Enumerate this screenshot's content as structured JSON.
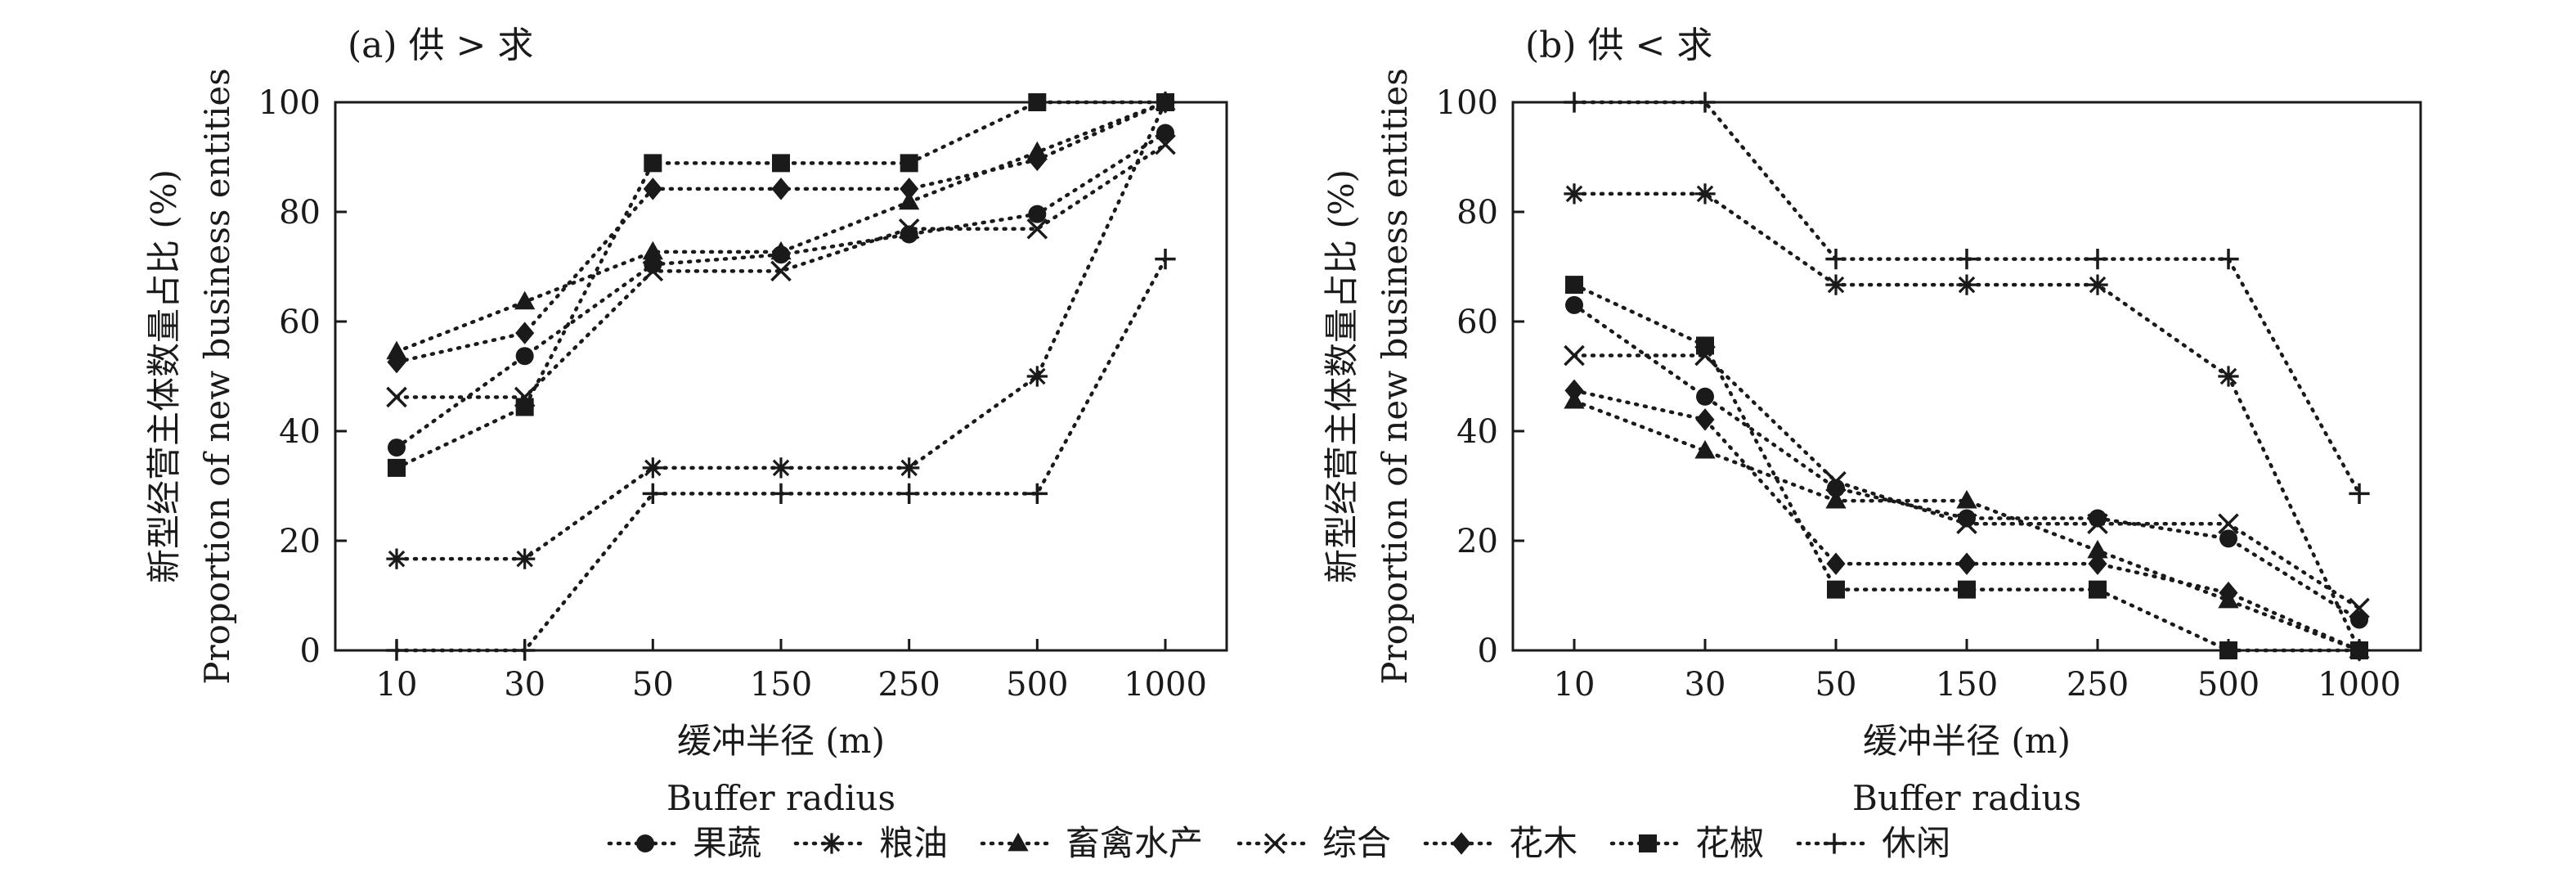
{
  "chart_data": [
    {
      "type": "line",
      "title": "(a) 供 > 求",
      "xlabel": "缓冲半径 (m)",
      "xlabel_en": "Buffer radius",
      "ylabel": "新型经营主体数量占比 (%)",
      "ylabel_en": "Proportion of new business entities",
      "categories": [
        "10",
        "30",
        "50",
        "150",
        "250",
        "500",
        "1000"
      ],
      "ylim": [
        0,
        100
      ],
      "yticks": [
        "0",
        "20",
        "40",
        "60",
        "80",
        "100"
      ],
      "grid": false,
      "series": [
        {
          "name": "果蔬",
          "marker": "circle",
          "values": [
            37,
            53.7,
            70.4,
            72.2,
            75.9,
            79.6,
            94.4
          ]
        },
        {
          "name": "粮油",
          "marker": "star",
          "values": [
            16.7,
            16.7,
            33.3,
            33.3,
            33.3,
            50,
            100
          ]
        },
        {
          "name": "畜禽水产",
          "marker": "triangle",
          "values": [
            54.5,
            63.6,
            72.7,
            72.7,
            81.8,
            90.9,
            100
          ]
        },
        {
          "name": "综合",
          "marker": "x",
          "values": [
            46.2,
            46.2,
            69.2,
            69.2,
            76.9,
            76.9,
            92.3
          ]
        },
        {
          "name": "花木",
          "marker": "diamond",
          "values": [
            52.6,
            57.9,
            84.2,
            84.2,
            84.2,
            89.5,
            100
          ]
        },
        {
          "name": "花椒",
          "marker": "square",
          "values": [
            33.3,
            44.4,
            88.9,
            88.9,
            88.9,
            100,
            100
          ]
        },
        {
          "name": "休闲",
          "marker": "plus",
          "values": [
            0,
            0,
            28.6,
            28.6,
            28.6,
            28.6,
            71.4
          ]
        }
      ]
    },
    {
      "type": "line",
      "title": "(b) 供 < 求",
      "xlabel": "缓冲半径 (m)",
      "xlabel_en": "Buffer radius",
      "ylabel": "新型经营主体数量占比 (%)",
      "ylabel_en": "Proportion of new business entities",
      "categories": [
        "10",
        "30",
        "50",
        "150",
        "250",
        "500",
        "1000"
      ],
      "ylim": [
        0,
        100
      ],
      "yticks": [
        "0",
        "20",
        "40",
        "60",
        "80",
        "100"
      ],
      "grid": false,
      "series": [
        {
          "name": "果蔬",
          "marker": "circle",
          "values": [
            63,
            46.3,
            29.6,
            24.1,
            24.1,
            20.4,
            5.6
          ]
        },
        {
          "name": "粮油",
          "marker": "star",
          "values": [
            83.3,
            83.3,
            66.7,
            66.7,
            66.7,
            50,
            0
          ]
        },
        {
          "name": "畜禽水产",
          "marker": "triangle",
          "values": [
            45.5,
            36.4,
            27.3,
            27.3,
            18.2,
            9.1,
            0
          ]
        },
        {
          "name": "综合",
          "marker": "x",
          "values": [
            53.8,
            53.8,
            30.8,
            23.1,
            23.1,
            23.1,
            7.7
          ]
        },
        {
          "name": "花木",
          "marker": "diamond",
          "values": [
            47.4,
            42.1,
            15.8,
            15.8,
            15.8,
            10.5,
            0
          ]
        },
        {
          "name": "花椒",
          "marker": "square",
          "values": [
            66.7,
            55.6,
            11.1,
            11.1,
            11.1,
            0,
            0
          ]
        },
        {
          "name": "休闲",
          "marker": "plus",
          "values": [
            100,
            100,
            71.4,
            71.4,
            71.4,
            71.4,
            28.6
          ]
        }
      ]
    }
  ],
  "legend": {
    "placement": "bottom",
    "items": [
      "果蔬",
      "粮油",
      "畜禽水产",
      "综合",
      "花木",
      "花椒",
      "休闲"
    ]
  }
}
